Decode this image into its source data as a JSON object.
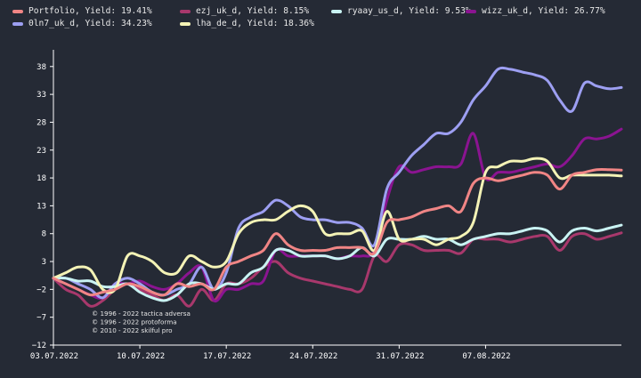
{
  "chart_data": {
    "type": "line",
    "title": "",
    "xlabel": "",
    "ylabel": "",
    "ylim": [
      -12,
      41
    ],
    "yticks": [
      -12,
      -7,
      -2,
      3,
      8,
      13,
      18,
      23,
      28,
      33,
      38
    ],
    "ytick_labels": [
      "−12",
      "−7",
      "−2",
      "3",
      "8",
      "13",
      "18",
      "23",
      "28",
      "33",
      "38"
    ],
    "xlim": [
      0,
      46
    ],
    "xticks": [
      0,
      7,
      14,
      21,
      28,
      35
    ],
    "xtick_labels": [
      "03.07.2022",
      "10.07.2022",
      "17.07.2022",
      "24.07.2022",
      "31.07.2022",
      "07.08.2022"
    ],
    "grid": false,
    "legend_position": "top",
    "credits": [
      "© 1996 - 2022 tactica adversa",
      "© 1996 - 2022 protoforma",
      "© 2010 - 2022 skilful pro"
    ],
    "series": [
      {
        "name": "Portfolio, Yield: 19.41%",
        "color": "#f08585",
        "points": [
          [
            0,
            0
          ],
          [
            1,
            -1
          ],
          [
            2,
            -2
          ],
          [
            3,
            -3
          ],
          [
            4,
            -2.5
          ],
          [
            5,
            -2
          ],
          [
            6,
            -1
          ],
          [
            7,
            -1.5
          ],
          [
            8,
            -2.5
          ],
          [
            9,
            -3
          ],
          [
            10,
            -1
          ],
          [
            11,
            -1.5
          ],
          [
            12,
            -1
          ],
          [
            13,
            -2
          ],
          [
            14,
            2
          ],
          [
            15,
            3
          ],
          [
            16,
            4
          ],
          [
            17,
            5
          ],
          [
            18,
            8
          ],
          [
            19,
            6
          ],
          [
            20,
            5
          ],
          [
            21,
            5
          ],
          [
            22,
            5
          ],
          [
            23,
            5.5
          ],
          [
            24,
            5.5
          ],
          [
            25,
            5.5
          ],
          [
            26,
            4.5
          ],
          [
            27,
            10
          ],
          [
            28,
            10.5
          ],
          [
            29,
            11
          ],
          [
            30,
            12
          ],
          [
            31,
            12.5
          ],
          [
            32,
            13
          ],
          [
            33,
            12
          ],
          [
            34,
            17
          ],
          [
            35,
            18
          ],
          [
            36,
            17.5
          ],
          [
            37,
            18
          ],
          [
            38,
            18.5
          ],
          [
            39,
            19
          ],
          [
            40,
            18.5
          ],
          [
            41,
            16
          ],
          [
            42,
            18.5
          ],
          [
            43,
            19
          ],
          [
            44,
            19.5
          ],
          [
            45,
            19.5
          ],
          [
            46,
            19.4
          ]
        ]
      },
      {
        "name": "ezj_uk_d, Yield: 8.15%",
        "color": "#a8386c",
        "points": [
          [
            0,
            0
          ],
          [
            1,
            -2
          ],
          [
            2,
            -3
          ],
          [
            3,
            -5
          ],
          [
            4,
            -4
          ],
          [
            5,
            -2
          ],
          [
            6,
            -1
          ],
          [
            7,
            -2
          ],
          [
            8,
            -3
          ],
          [
            9,
            -4
          ],
          [
            10,
            -3
          ],
          [
            11,
            -5
          ],
          [
            12,
            -2
          ],
          [
            13,
            -4
          ],
          [
            14,
            -1
          ],
          [
            15,
            -1
          ],
          [
            16,
            0
          ],
          [
            17,
            2
          ],
          [
            18,
            3
          ],
          [
            19,
            1
          ],
          [
            20,
            0
          ],
          [
            21,
            -0.5
          ],
          [
            22,
            -1
          ],
          [
            23,
            -1.5
          ],
          [
            24,
            -2
          ],
          [
            25,
            -2
          ],
          [
            26,
            4
          ],
          [
            27,
            3
          ],
          [
            28,
            6
          ],
          [
            29,
            6
          ],
          [
            30,
            5
          ],
          [
            31,
            5
          ],
          [
            32,
            5
          ],
          [
            33,
            4.5
          ],
          [
            34,
            7
          ],
          [
            35,
            7
          ],
          [
            36,
            7
          ],
          [
            37,
            6.5
          ],
          [
            38,
            7
          ],
          [
            39,
            7.5
          ],
          [
            40,
            7.5
          ],
          [
            41,
            5
          ],
          [
            42,
            7.5
          ],
          [
            43,
            8
          ],
          [
            44,
            7
          ],
          [
            45,
            7.5
          ],
          [
            46,
            8.15
          ]
        ]
      },
      {
        "name": "ryaay_us_d, Yield: 9.53%",
        "color": "#c9f3f3",
        "points": [
          [
            0,
            0
          ],
          [
            1,
            0
          ],
          [
            2,
            -0.5
          ],
          [
            3,
            -0.5
          ],
          [
            4,
            -1.5
          ],
          [
            5,
            -1.5
          ],
          [
            6,
            -1
          ],
          [
            7,
            -2.5
          ],
          [
            8,
            -3.5
          ],
          [
            9,
            -4
          ],
          [
            10,
            -3
          ],
          [
            11,
            -1
          ],
          [
            12,
            -1
          ],
          [
            13,
            -2
          ],
          [
            14,
            -1
          ],
          [
            15,
            -1
          ],
          [
            16,
            1
          ],
          [
            17,
            2
          ],
          [
            18,
            5
          ],
          [
            19,
            5
          ],
          [
            20,
            4
          ],
          [
            21,
            4
          ],
          [
            22,
            4
          ],
          [
            23,
            3.5
          ],
          [
            24,
            4
          ],
          [
            25,
            5.5
          ],
          [
            26,
            4
          ],
          [
            27,
            7
          ],
          [
            28,
            7
          ],
          [
            29,
            7
          ],
          [
            30,
            7.5
          ],
          [
            31,
            7
          ],
          [
            32,
            7
          ],
          [
            33,
            6
          ],
          [
            34,
            7
          ],
          [
            35,
            7.5
          ],
          [
            36,
            8
          ],
          [
            37,
            8
          ],
          [
            38,
            8.5
          ],
          [
            39,
            9
          ],
          [
            40,
            8.5
          ],
          [
            41,
            6.5
          ],
          [
            42,
            8.5
          ],
          [
            43,
            9
          ],
          [
            44,
            8.5
          ],
          [
            45,
            9
          ],
          [
            46,
            9.53
          ]
        ]
      },
      {
        "name": "wizz_uk_d, Yield: 26.77%",
        "color": "#8b1491",
        "points": [
          [
            0,
            0
          ],
          [
            1,
            -1
          ],
          [
            2,
            -2
          ],
          [
            3,
            -3
          ],
          [
            4,
            -3.5
          ],
          [
            5,
            -1
          ],
          [
            6,
            -1
          ],
          [
            7,
            -0.5
          ],
          [
            8,
            -1.5
          ],
          [
            9,
            -2
          ],
          [
            10,
            -1
          ],
          [
            11,
            1
          ],
          [
            12,
            2
          ],
          [
            13,
            -4
          ],
          [
            14,
            -2
          ],
          [
            15,
            -2
          ],
          [
            16,
            -1
          ],
          [
            17,
            -0.5
          ],
          [
            18,
            5
          ],
          [
            19,
            4
          ],
          [
            20,
            4
          ],
          [
            21,
            4
          ],
          [
            22,
            4
          ],
          [
            23,
            3.5
          ],
          [
            24,
            4
          ],
          [
            25,
            4
          ],
          [
            26,
            5
          ],
          [
            27,
            14
          ],
          [
            28,
            20
          ],
          [
            29,
            19
          ],
          [
            30,
            19.5
          ],
          [
            31,
            20
          ],
          [
            32,
            20
          ],
          [
            33,
            20.5
          ],
          [
            34,
            26
          ],
          [
            35,
            18
          ],
          [
            36,
            19
          ],
          [
            37,
            19
          ],
          [
            38,
            19.5
          ],
          [
            39,
            20
          ],
          [
            40,
            20.5
          ],
          [
            41,
            20
          ],
          [
            42,
            22
          ],
          [
            43,
            25
          ],
          [
            44,
            25
          ],
          [
            45,
            25.5
          ],
          [
            46,
            26.77
          ]
        ]
      },
      {
        "name": "0ln7_uk_d, Yield: 34.23%",
        "color": "#9d9ff2",
        "points": [
          [
            0,
            0
          ],
          [
            1,
            0
          ],
          [
            2,
            -1
          ],
          [
            3,
            -2
          ],
          [
            4,
            -3.5
          ],
          [
            5,
            -1
          ],
          [
            6,
            0
          ],
          [
            7,
            -1
          ],
          [
            8,
            -2.5
          ],
          [
            9,
            -3
          ],
          [
            10,
            -2
          ],
          [
            11,
            -1
          ],
          [
            12,
            2
          ],
          [
            13,
            -2
          ],
          [
            14,
            1
          ],
          [
            15,
            9
          ],
          [
            16,
            11
          ],
          [
            17,
            12
          ],
          [
            18,
            14
          ],
          [
            19,
            13
          ],
          [
            20,
            11
          ],
          [
            21,
            10.5
          ],
          [
            22,
            10.5
          ],
          [
            23,
            10
          ],
          [
            24,
            10
          ],
          [
            25,
            9
          ],
          [
            26,
            6
          ],
          [
            27,
            16
          ],
          [
            28,
            19
          ],
          [
            29,
            22
          ],
          [
            30,
            24
          ],
          [
            31,
            26
          ],
          [
            32,
            26
          ],
          [
            33,
            28
          ],
          [
            34,
            32
          ],
          [
            35,
            34.5
          ],
          [
            36,
            37.5
          ],
          [
            37,
            37.5
          ],
          [
            38,
            37
          ],
          [
            39,
            36.5
          ],
          [
            40,
            35.5
          ],
          [
            41,
            32
          ],
          [
            42,
            30
          ],
          [
            43,
            35
          ],
          [
            44,
            34.5
          ],
          [
            45,
            34
          ],
          [
            46,
            34.23
          ]
        ]
      },
      {
        "name": "lha_de_d, Yield: 18.36%",
        "color": "#f4f3b6",
        "points": [
          [
            0,
            0
          ],
          [
            1,
            1
          ],
          [
            2,
            2
          ],
          [
            3,
            1.5
          ],
          [
            4,
            -2
          ],
          [
            5,
            -2
          ],
          [
            6,
            4
          ],
          [
            7,
            4
          ],
          [
            8,
            3
          ],
          [
            9,
            1
          ],
          [
            10,
            1
          ],
          [
            11,
            4
          ],
          [
            12,
            3
          ],
          [
            13,
            2
          ],
          [
            14,
            3
          ],
          [
            15,
            8
          ],
          [
            16,
            10
          ],
          [
            17,
            10.5
          ],
          [
            18,
            10.5
          ],
          [
            19,
            12
          ],
          [
            20,
            13
          ],
          [
            21,
            12
          ],
          [
            22,
            8
          ],
          [
            23,
            8
          ],
          [
            24,
            8
          ],
          [
            25,
            8.5
          ],
          [
            26,
            5
          ],
          [
            27,
            12
          ],
          [
            28,
            7
          ],
          [
            29,
            7
          ],
          [
            30,
            7
          ],
          [
            31,
            6
          ],
          [
            32,
            7
          ],
          [
            33,
            7.5
          ],
          [
            34,
            10
          ],
          [
            35,
            19
          ],
          [
            36,
            20
          ],
          [
            37,
            21
          ],
          [
            38,
            21
          ],
          [
            39,
            21.5
          ],
          [
            40,
            21
          ],
          [
            41,
            18
          ],
          [
            42,
            18.5
          ],
          [
            43,
            18.5
          ],
          [
            44,
            18.5
          ],
          [
            45,
            18.5
          ],
          [
            46,
            18.36
          ]
        ]
      }
    ]
  }
}
